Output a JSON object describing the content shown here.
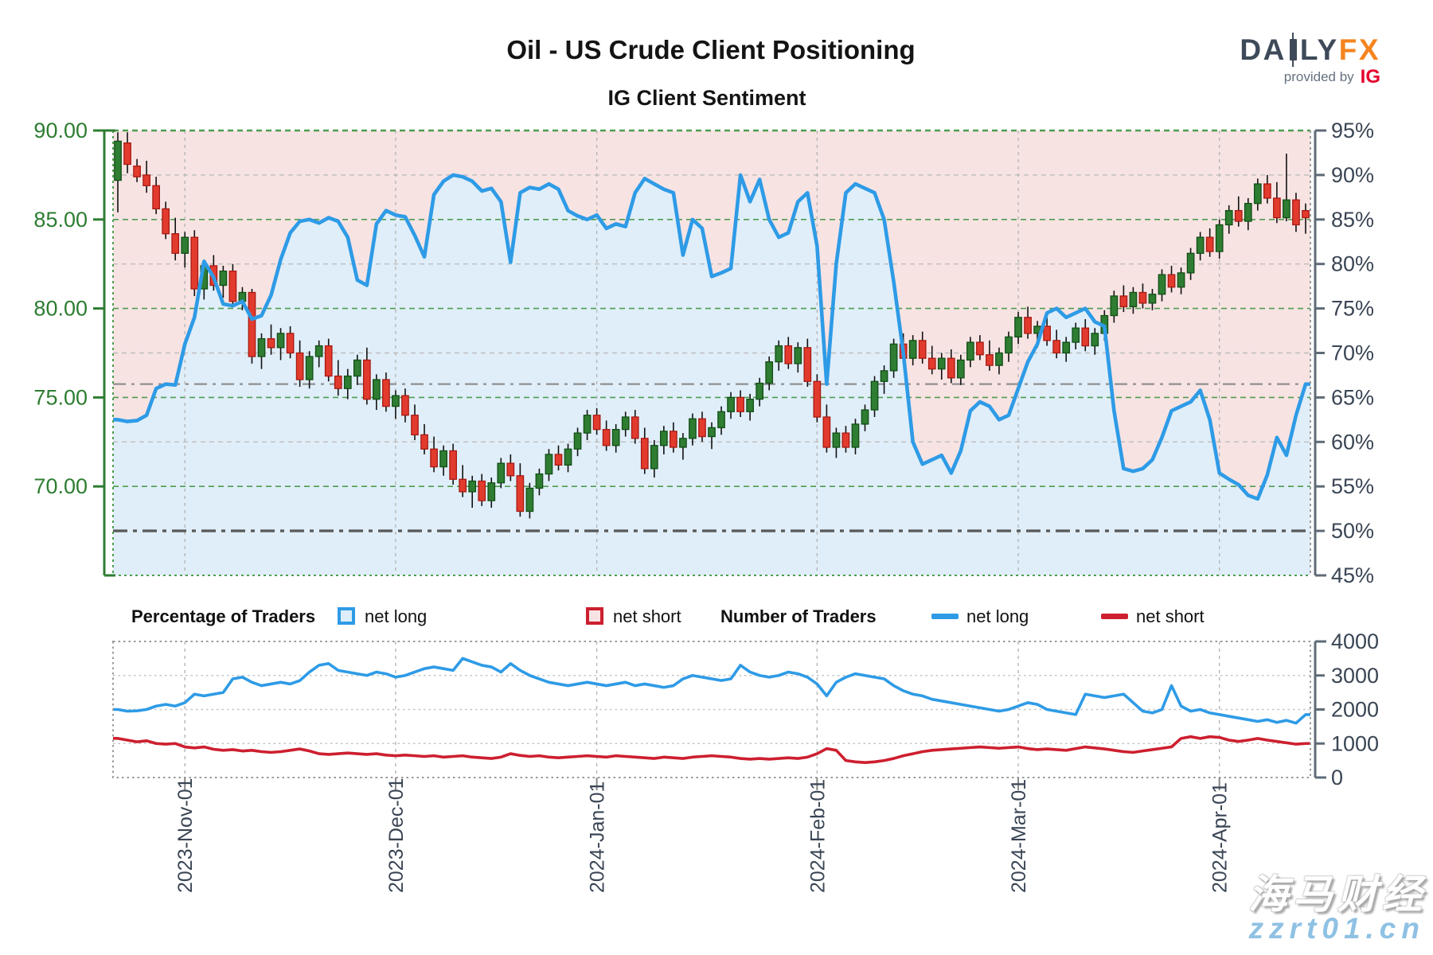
{
  "header": {
    "title": "Oil - US Crude Client Positioning",
    "subtitle": "IG Client Sentiment",
    "brand": {
      "part1": "DA",
      "part2": "LY",
      "part3": "FX",
      "provided_by": "provided by",
      "ig": "IG"
    }
  },
  "legend": {
    "pct_header": "Percentage of Traders",
    "pct_long": "net long",
    "pct_short": "net short",
    "num_header": "Number of Traders",
    "num_long": "net long",
    "num_short": "net short"
  },
  "watermark": {
    "line1": "海马财经",
    "line2": "zzrt01.cn"
  },
  "colors": {
    "candle_up": "#2e7d32",
    "candle_up_border": "#124f16",
    "candle_down": "#e23b2e",
    "candle_down_border": "#a81a12",
    "net_long_blue": "#2e9be6",
    "net_short_red": "#cd1f2f",
    "long_region_fill": "#e0eef9",
    "short_region_fill": "#f8e3e3",
    "axis_green": "#2e7d32",
    "axis_slate": "#3a4554",
    "grid_green": "#4e9d50",
    "grid_gray": "#bdbdbd",
    "ref_line_light": "#8f8f8f",
    "ref_line_dark": "#5b5b5b",
    "logo_slate": "#3e4a59",
    "logo_orange": "#f5841f",
    "logo_ig_red": "#e4002b",
    "watermark_blue": "#8fc1e3"
  },
  "axes": {
    "price_ticks": [
      "90.00",
      "85.00",
      "80.00",
      "75.00",
      "70.00"
    ],
    "price_tick_values": [
      90,
      85,
      80,
      75,
      70
    ],
    "percent_ticks": [
      "95%",
      "90%",
      "85%",
      "80%",
      "75%",
      "70%",
      "65%",
      "60%",
      "55%",
      "50%",
      "45%"
    ],
    "percent_tick_values": [
      95,
      90,
      85,
      80,
      75,
      70,
      65,
      60,
      55,
      50,
      45
    ],
    "traders_ticks": [
      "4000",
      "3000",
      "2000",
      "1000",
      "0"
    ],
    "traders_tick_values": [
      4000,
      3000,
      2000,
      1000,
      0
    ]
  },
  "chart_data": [
    {
      "type": "candlestick",
      "title": "IG Client Sentiment",
      "price_ylim": [
        65,
        90
      ],
      "percent_ylim": [
        45,
        95
      ],
      "grid": true,
      "x_months": [
        {
          "label": "2023-Nov-01",
          "index": 7
        },
        {
          "label": "2023-Dec-01",
          "index": 29
        },
        {
          "label": "2024-Jan-01",
          "index": 50
        },
        {
          "label": "2024-Feb-01",
          "index": 73
        },
        {
          "label": "2024-Mar-01",
          "index": 94
        },
        {
          "label": "2024-Apr-01",
          "index": 115
        }
      ],
      "reference_lines": {
        "current_net_long_pct": 66.5,
        "mid_pct": 50
      },
      "candles_ohlc": [
        [
          87.2,
          89.9,
          85.4,
          89.4
        ],
        [
          89.3,
          89.9,
          87.6,
          88.1
        ],
        [
          88.0,
          88.4,
          87.1,
          87.4
        ],
        [
          87.5,
          88.3,
          86.5,
          86.9
        ],
        [
          86.9,
          87.4,
          85.3,
          85.6
        ],
        [
          85.6,
          86.0,
          83.9,
          84.2
        ],
        [
          84.2,
          85.1,
          82.7,
          83.1
        ],
        [
          83.1,
          84.3,
          82.3,
          84.0
        ],
        [
          84.0,
          84.4,
          80.7,
          81.1
        ],
        [
          81.1,
          82.7,
          80.5,
          82.4
        ],
        [
          82.4,
          83.0,
          81.0,
          81.3
        ],
        [
          81.3,
          82.4,
          80.6,
          82.1
        ],
        [
          82.1,
          82.5,
          80.1,
          80.4
        ],
        [
          80.4,
          81.2,
          79.9,
          80.9
        ],
        [
          80.9,
          81.1,
          76.9,
          77.3
        ],
        [
          77.3,
          78.6,
          76.6,
          78.3
        ],
        [
          78.3,
          79.1,
          77.4,
          77.8
        ],
        [
          77.8,
          78.9,
          77.1,
          78.6
        ],
        [
          78.6,
          79.0,
          77.2,
          77.5
        ],
        [
          77.5,
          78.2,
          75.6,
          76.0
        ],
        [
          76.0,
          77.6,
          75.5,
          77.3
        ],
        [
          77.3,
          78.2,
          76.7,
          77.9
        ],
        [
          77.9,
          78.3,
          75.9,
          76.2
        ],
        [
          76.2,
          77.1,
          75.1,
          75.5
        ],
        [
          75.5,
          76.6,
          74.9,
          76.2
        ],
        [
          76.2,
          77.4,
          75.7,
          77.1
        ],
        [
          77.1,
          77.8,
          74.6,
          74.9
        ],
        [
          74.9,
          76.3,
          74.3,
          76.0
        ],
        [
          76.0,
          76.4,
          74.2,
          74.5
        ],
        [
          74.5,
          75.4,
          73.8,
          75.1
        ],
        [
          75.1,
          75.5,
          73.6,
          74.0
        ],
        [
          74.0,
          74.6,
          72.6,
          72.9
        ],
        [
          72.9,
          73.5,
          71.8,
          72.1
        ],
        [
          72.1,
          72.8,
          70.8,
          71.1
        ],
        [
          71.1,
          72.3,
          70.6,
          72.0
        ],
        [
          72.0,
          72.4,
          70.1,
          70.4
        ],
        [
          70.4,
          71.2,
          69.4,
          69.7
        ],
        [
          69.7,
          70.6,
          68.8,
          70.3
        ],
        [
          70.3,
          70.7,
          68.9,
          69.2
        ],
        [
          69.2,
          70.5,
          68.8,
          70.2
        ],
        [
          70.2,
          71.6,
          69.9,
          71.3
        ],
        [
          71.3,
          71.8,
          70.3,
          70.6
        ],
        [
          70.6,
          71.3,
          68.3,
          68.6
        ],
        [
          68.6,
          70.2,
          68.2,
          69.9
        ],
        [
          69.9,
          71.0,
          69.5,
          70.7
        ],
        [
          70.7,
          72.1,
          70.3,
          71.8
        ],
        [
          71.8,
          72.3,
          70.9,
          71.2
        ],
        [
          71.2,
          72.4,
          70.8,
          72.1
        ],
        [
          72.1,
          73.3,
          71.7,
          73.0
        ],
        [
          73.0,
          74.3,
          72.6,
          74.0
        ],
        [
          74.0,
          74.4,
          72.9,
          73.2
        ],
        [
          73.2,
          73.7,
          72.0,
          72.3
        ],
        [
          72.3,
          73.5,
          71.9,
          73.2
        ],
        [
          73.2,
          74.2,
          72.8,
          73.9
        ],
        [
          73.9,
          74.3,
          72.4,
          72.7
        ],
        [
          72.7,
          73.3,
          70.7,
          71.0
        ],
        [
          71.0,
          72.6,
          70.5,
          72.3
        ],
        [
          72.3,
          73.4,
          71.8,
          73.1
        ],
        [
          73.1,
          73.6,
          71.9,
          72.2
        ],
        [
          72.2,
          73.0,
          71.5,
          72.7
        ],
        [
          72.7,
          74.1,
          72.3,
          73.8
        ],
        [
          73.8,
          74.2,
          72.5,
          72.8
        ],
        [
          72.8,
          73.6,
          72.1,
          73.3
        ],
        [
          73.3,
          74.5,
          72.9,
          74.2
        ],
        [
          74.2,
          75.3,
          73.8,
          75.0
        ],
        [
          75.0,
          75.4,
          73.9,
          74.2
        ],
        [
          74.2,
          75.2,
          73.7,
          74.9
        ],
        [
          74.9,
          76.1,
          74.5,
          75.8
        ],
        [
          75.8,
          77.3,
          75.4,
          77.0
        ],
        [
          77.0,
          78.2,
          76.5,
          77.9
        ],
        [
          77.9,
          78.4,
          76.6,
          76.9
        ],
        [
          76.9,
          78.1,
          76.4,
          77.8
        ],
        [
          77.8,
          78.3,
          75.6,
          75.9
        ],
        [
          75.9,
          76.3,
          73.6,
          73.9
        ],
        [
          73.9,
          74.6,
          71.9,
          72.2
        ],
        [
          72.2,
          73.3,
          71.6,
          73.0
        ],
        [
          73.0,
          73.4,
          71.9,
          72.2
        ],
        [
          72.2,
          73.8,
          71.8,
          73.5
        ],
        [
          73.5,
          74.6,
          73.1,
          74.3
        ],
        [
          74.3,
          76.2,
          73.9,
          75.9
        ],
        [
          75.9,
          76.8,
          75.2,
          76.5
        ],
        [
          76.5,
          78.3,
          76.1,
          78.0
        ],
        [
          78.0,
          78.6,
          76.9,
          77.2
        ],
        [
          77.2,
          78.5,
          76.8,
          78.2
        ],
        [
          78.2,
          78.7,
          76.9,
          77.2
        ],
        [
          77.2,
          77.9,
          76.3,
          76.6
        ],
        [
          76.6,
          77.5,
          76.0,
          77.2
        ],
        [
          77.2,
          77.7,
          75.8,
          76.1
        ],
        [
          76.1,
          77.4,
          75.7,
          77.1
        ],
        [
          77.1,
          78.4,
          76.7,
          78.1
        ],
        [
          78.1,
          78.5,
          77.1,
          77.4
        ],
        [
          77.4,
          78.2,
          76.5,
          76.8
        ],
        [
          76.8,
          77.8,
          76.3,
          77.5
        ],
        [
          77.5,
          78.7,
          77.0,
          78.4
        ],
        [
          78.4,
          79.8,
          78.0,
          79.5
        ],
        [
          79.5,
          80.1,
          78.3,
          78.6
        ],
        [
          78.6,
          79.3,
          77.8,
          79.0
        ],
        [
          79.0,
          79.5,
          77.9,
          78.2
        ],
        [
          78.2,
          78.8,
          77.2,
          77.5
        ],
        [
          77.5,
          78.4,
          77.0,
          78.1
        ],
        [
          78.1,
          79.2,
          77.7,
          78.9
        ],
        [
          78.9,
          79.4,
          77.6,
          77.9
        ],
        [
          77.9,
          78.9,
          77.4,
          78.6
        ],
        [
          78.6,
          79.9,
          78.2,
          79.6
        ],
        [
          79.6,
          81.0,
          79.2,
          80.7
        ],
        [
          80.7,
          81.3,
          79.8,
          80.1
        ],
        [
          80.1,
          81.2,
          79.7,
          80.9
        ],
        [
          80.9,
          81.4,
          80.0,
          80.3
        ],
        [
          80.3,
          81.1,
          79.9,
          80.8
        ],
        [
          80.8,
          82.2,
          80.4,
          81.9
        ],
        [
          81.9,
          82.4,
          80.9,
          81.2
        ],
        [
          81.2,
          82.3,
          80.8,
          82.0
        ],
        [
          82.0,
          83.4,
          81.6,
          83.1
        ],
        [
          83.1,
          84.3,
          82.7,
          84.0
        ],
        [
          84.0,
          84.5,
          82.9,
          83.2
        ],
        [
          83.2,
          85.0,
          82.8,
          84.7
        ],
        [
          84.7,
          85.8,
          84.2,
          85.5
        ],
        [
          85.5,
          86.3,
          84.6,
          84.9
        ],
        [
          84.9,
          86.2,
          84.4,
          85.9
        ],
        [
          85.9,
          87.3,
          85.5,
          87.0
        ],
        [
          87.0,
          87.5,
          85.9,
          86.2
        ],
        [
          86.2,
          87.1,
          84.8,
          85.1
        ],
        [
          85.1,
          88.7,
          84.9,
          86.1
        ],
        [
          86.1,
          86.5,
          84.3,
          84.7
        ],
        [
          85.5,
          85.9,
          84.2,
          85.1
        ]
      ],
      "overlay_line": {
        "name": "percentage of traders net long",
        "values": [
          62.5,
          62.3,
          62.4,
          63.0,
          66.0,
          66.5,
          66.4,
          71.0,
          74.0,
          80.3,
          78.5,
          75.5,
          75.3,
          75.8,
          73.8,
          74.2,
          76.5,
          80.5,
          83.5,
          84.8,
          85.0,
          84.6,
          85.2,
          84.8,
          83.0,
          78.2,
          77.6,
          84.5,
          86.0,
          85.5,
          85.3,
          83.2,
          80.8,
          87.8,
          89.3,
          90.0,
          89.8,
          89.3,
          88.2,
          88.5,
          87.0,
          80.2,
          88.0,
          88.6,
          88.4,
          89.0,
          88.4,
          86.0,
          85.4,
          85.0,
          85.5,
          84.0,
          84.5,
          84.2,
          88.0,
          89.6,
          89.0,
          88.4,
          88.0,
          81.0,
          85.0,
          84.0,
          78.6,
          79.0,
          79.5,
          90.0,
          87.0,
          89.5,
          85.0,
          83.0,
          83.5,
          87.0,
          88.0,
          82.0,
          66.5,
          80.0,
          88.0,
          89.0,
          88.5,
          88.0,
          85.0,
          78.0,
          70.0,
          60.0,
          57.5,
          58.0,
          58.5,
          56.5,
          59.0,
          63.5,
          64.5,
          64.0,
          62.5,
          63.0,
          66.0,
          69.0,
          71.0,
          74.5,
          75.0,
          74.0,
          74.5,
          75.0,
          73.5,
          73.0,
          63.5,
          57.0,
          56.7,
          57.0,
          58.0,
          60.5,
          63.5,
          64.0,
          64.5,
          65.8,
          62.5,
          56.5,
          55.8,
          55.2,
          54.0,
          53.6,
          56.3,
          60.5,
          58.5,
          63.0,
          66.5
        ]
      }
    },
    {
      "type": "line",
      "ylim": [
        0,
        4000
      ],
      "grid": true,
      "series": [
        {
          "name": "net long",
          "values": [
            2000,
            1950,
            1960,
            2000,
            2100,
            2150,
            2100,
            2200,
            2450,
            2400,
            2450,
            2500,
            2900,
            2950,
            2800,
            2700,
            2750,
            2800,
            2750,
            2850,
            3100,
            3300,
            3350,
            3150,
            3100,
            3050,
            3000,
            3100,
            3050,
            2950,
            3000,
            3100,
            3200,
            3250,
            3200,
            3150,
            3500,
            3400,
            3300,
            3250,
            3100,
            3350,
            3150,
            3000,
            2900,
            2800,
            2750,
            2700,
            2750,
            2800,
            2750,
            2700,
            2750,
            2800,
            2700,
            2750,
            2700,
            2650,
            2700,
            2900,
            3000,
            2950,
            2900,
            2850,
            2900,
            3300,
            3100,
            3000,
            2950,
            3000,
            3100,
            3050,
            2950,
            2750,
            2400,
            2800,
            2950,
            3050,
            3000,
            2950,
            2900,
            2700,
            2550,
            2450,
            2400,
            2300,
            2250,
            2200,
            2150,
            2100,
            2050,
            2000,
            1950,
            2000,
            2100,
            2200,
            2150,
            2000,
            1950,
            1900,
            1850,
            2450,
            2400,
            2350,
            2400,
            2450,
            2200,
            1950,
            1900,
            2000,
            2700,
            2100,
            1950,
            2000,
            1900,
            1850,
            1800,
            1750,
            1700,
            1650,
            1700,
            1620,
            1680,
            1600,
            1850
          ]
        },
        {
          "name": "net short",
          "values": [
            1150,
            1100,
            1050,
            1080,
            1000,
            980,
            1000,
            900,
            870,
            900,
            830,
            800,
            820,
            780,
            800,
            760,
            740,
            760,
            800,
            840,
            780,
            700,
            680,
            700,
            720,
            700,
            680,
            700,
            660,
            640,
            660,
            640,
            620,
            640,
            600,
            620,
            640,
            600,
            580,
            560,
            600,
            700,
            650,
            620,
            640,
            600,
            580,
            600,
            620,
            640,
            620,
            600,
            640,
            620,
            600,
            580,
            560,
            600,
            580,
            560,
            600,
            620,
            640,
            620,
            600,
            560,
            540,
            560,
            540,
            560,
            580,
            560,
            600,
            700,
            850,
            800,
            500,
            460,
            440,
            460,
            500,
            560,
            640,
            700,
            760,
            800,
            820,
            840,
            860,
            880,
            900,
            880,
            860,
            880,
            900,
            850,
            820,
            840,
            820,
            800,
            850,
            900,
            870,
            840,
            800,
            760,
            740,
            780,
            820,
            860,
            900,
            1150,
            1200,
            1150,
            1200,
            1180,
            1100,
            1060,
            1100,
            1150,
            1100,
            1060,
            1020,
            980,
            1000
          ]
        }
      ]
    }
  ]
}
